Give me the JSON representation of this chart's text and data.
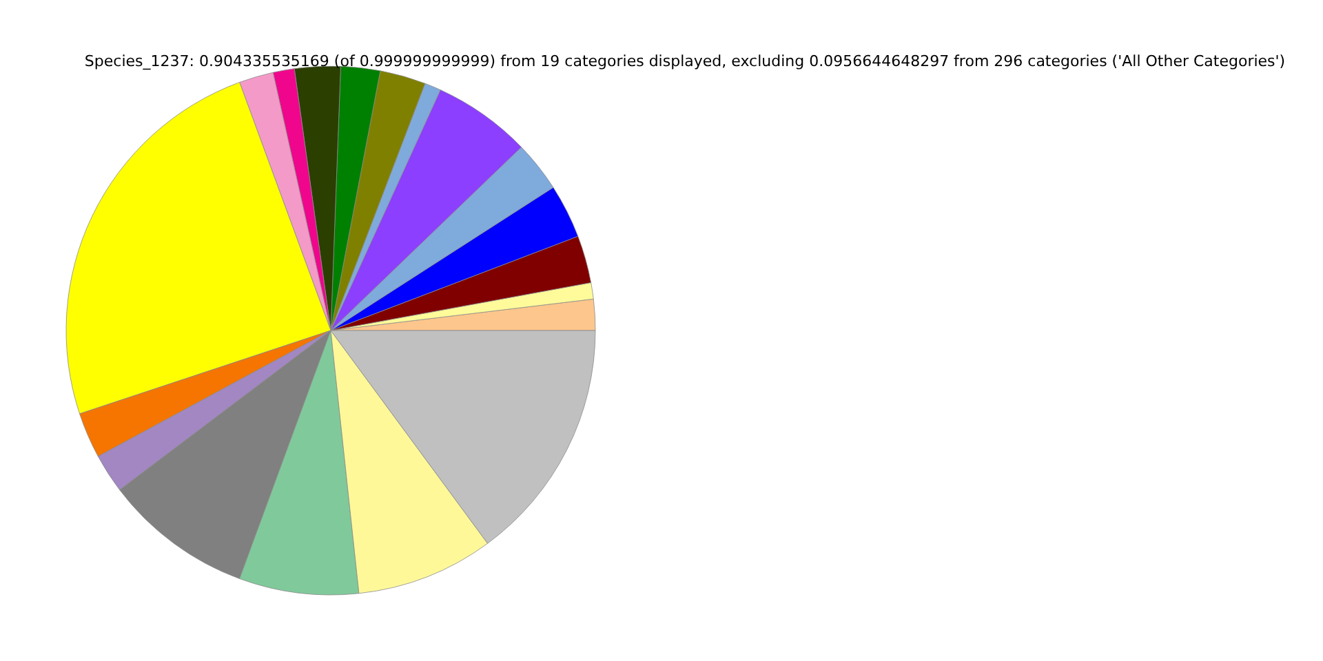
{
  "chart_data": {
    "type": "pie",
    "title": "Species_1237: 0.904335535169 (of 0.999999999999) from 19 categories displayed, excluding 0.0956644648297 from 296 categories ('All Other Categories')",
    "categories": [
      null,
      null,
      null,
      null,
      null,
      null,
      null,
      null,
      null,
      null,
      null,
      null,
      null,
      null,
      null,
      null,
      null,
      null,
      null
    ],
    "values": [
      1.9,
      1.0,
      2.9,
      3.3,
      3.1,
      6.0,
      1.0,
      2.8,
      2.4,
      2.8,
      1.3,
      2.1,
      24.5,
      2.8,
      2.4,
      9.1,
      7.3,
      8.4,
      14.9
    ],
    "colors": [
      "#fdc68c",
      "#fffa9a",
      "#800000",
      "#0000ff",
      "#7faadc",
      "#8c3fff",
      "#7faadc",
      "#808000",
      "#008000",
      "#2b3f00",
      "#f0068c",
      "#f49ac8",
      "#ffff00",
      "#f57500",
      "#a287c3",
      "#808080",
      "#80c99b",
      "#fff899",
      "#c0c0c0"
    ]
  }
}
